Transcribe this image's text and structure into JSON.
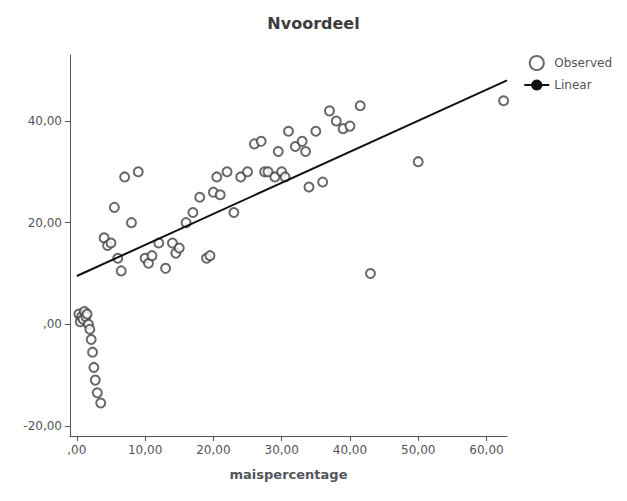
{
  "chart_data": {
    "type": "scatter",
    "title": "Nvoordeel",
    "xlabel": "maispercentage",
    "xlim": [
      -1,
      63
    ],
    "ylim": [
      -22,
      53
    ],
    "xticks": [
      {
        "value": 0,
        "label": ",00"
      },
      {
        "value": 10,
        "label": "10,00"
      },
      {
        "value": 20,
        "label": "20,00"
      },
      {
        "value": 30,
        "label": "30,00"
      },
      {
        "value": 40,
        "label": "40,00"
      },
      {
        "value": 50,
        "label": "50,00"
      },
      {
        "value": 60,
        "label": "60,00"
      }
    ],
    "yticks": [
      {
        "value": -20,
        "label": "-20,00"
      },
      {
        "value": 0,
        "label": ",00"
      },
      {
        "value": 20,
        "label": "20,00"
      },
      {
        "value": 40,
        "label": "40,00"
      }
    ],
    "grid": false,
    "legend": "upper right",
    "series": [
      {
        "name": "Observed",
        "type": "scatter",
        "color": "#444444",
        "marker": "open_circle",
        "x": [
          0.3,
          0.5,
          0.7,
          0.9,
          1.1,
          1.3,
          1.5,
          1.7,
          1.9,
          2.1,
          2.3,
          2.5,
          2.7,
          3.0,
          3.5,
          4.0,
          4.5,
          5.0,
          5.5,
          6.0,
          6.5,
          7.0,
          8.0,
          9.0,
          10.0,
          10.5,
          11.0,
          12.0,
          13.0,
          14.0,
          14.5,
          15.0,
          16.0,
          17.0,
          18.0,
          19.0,
          19.5,
          20.0,
          20.5,
          21.0,
          22.0,
          23.0,
          24.0,
          25.0,
          26.0,
          27.0,
          27.5,
          28.0,
          29.0,
          29.5,
          30.0,
          30.5,
          31.0,
          32.0,
          33.0,
          33.5,
          34.0,
          35.0,
          36.0,
          37.0,
          38.0,
          39.0,
          40.0,
          41.5,
          43.0,
          50.0,
          62.5
        ],
        "values": [
          2.0,
          0.5,
          1.5,
          1.0,
          2.5,
          1.5,
          2.0,
          0.0,
          -1.0,
          -3.0,
          -5.5,
          -8.5,
          -11.0,
          -13.5,
          -15.5,
          17.0,
          15.5,
          16.0,
          23.0,
          13.0,
          10.5,
          29.0,
          20.0,
          30.0,
          13.0,
          12.0,
          13.5,
          16.0,
          11.0,
          16.0,
          14.0,
          15.0,
          20.0,
          22.0,
          25.0,
          13.0,
          13.5,
          26.0,
          29.0,
          25.5,
          30.0,
          22.0,
          29.0,
          30.0,
          35.5,
          36.0,
          30.0,
          30.0,
          29.0,
          34.0,
          30.0,
          29.0,
          38.0,
          35.0,
          36.0,
          34.0,
          27.0,
          38.0,
          28.0,
          42.0,
          40.0,
          38.5,
          39.0,
          43.0,
          10.0,
          32.0,
          44.0
        ]
      },
      {
        "name": "Linear",
        "type": "line",
        "color": "#111111",
        "x": [
          0,
          63
        ],
        "values": [
          9.5,
          48.0
        ]
      }
    ]
  }
}
